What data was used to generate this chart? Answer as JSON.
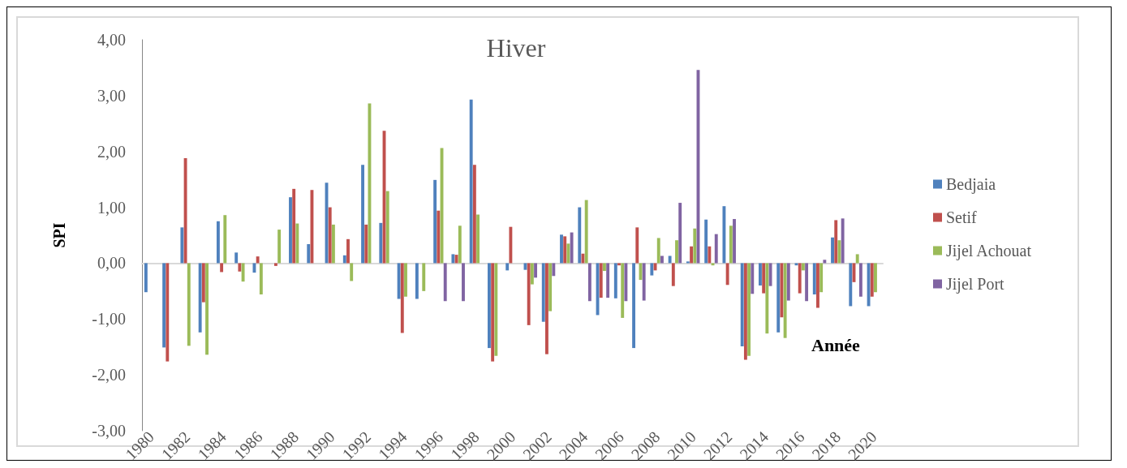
{
  "chart_data": {
    "type": "bar",
    "title": "Hiver",
    "xlabel": "Année",
    "ylabel": "SPI",
    "categories": [
      "1980",
      null,
      "1982",
      null,
      "1984",
      null,
      "1986",
      null,
      "1988",
      null,
      "1990",
      null,
      "1992",
      null,
      "1994",
      null,
      "1996",
      null,
      "1998",
      null,
      "2000",
      null,
      "2002",
      null,
      "2004",
      null,
      "2006",
      null,
      "2008",
      null,
      "2010",
      null,
      "2012",
      null,
      "2014",
      null,
      "2016",
      null,
      "2018",
      null,
      "2020"
    ],
    "series": [
      {
        "name": "Bedjaia",
        "color": "#4f81bd",
        "values": [
          -0.52,
          -1.51,
          0.64,
          -1.24,
          0.75,
          0.19,
          -0.17,
          null,
          1.18,
          0.34,
          1.44,
          0.14,
          1.76,
          0.72,
          -0.64,
          -0.64,
          1.49,
          0.16,
          2.93,
          -1.52,
          -0.13,
          -0.12,
          -1.05,
          0.51,
          1.0,
          -0.93,
          -0.63,
          -1.52,
          -0.22,
          0.13,
          0.03,
          0.78,
          1.02,
          -1.49,
          -0.4,
          -1.24,
          -0.04,
          -0.56,
          0.46,
          -0.77,
          -0.77
        ]
      },
      {
        "name": "Setif",
        "color": "#c0504d",
        "values": [
          null,
          -1.76,
          1.88,
          -0.7,
          -0.16,
          -0.15,
          0.12,
          -0.05,
          1.33,
          1.31,
          1.0,
          0.43,
          0.69,
          2.37,
          -1.25,
          null,
          0.94,
          0.15,
          1.76,
          -1.76,
          0.65,
          -1.11,
          -1.63,
          0.48,
          0.17,
          -0.62,
          -0.04,
          0.64,
          -0.13,
          -0.41,
          0.3,
          0.3,
          -0.39,
          -1.73,
          -0.54,
          -0.97,
          -0.54,
          -0.8,
          0.77,
          -0.34,
          -0.6
        ]
      },
      {
        "name": "Jijel Achouat",
        "color": "#9bbb59",
        "values": [
          null,
          null,
          -1.48,
          -1.64,
          0.86,
          -0.33,
          -0.56,
          0.6,
          0.71,
          null,
          0.69,
          -0.32,
          2.86,
          1.29,
          -0.6,
          -0.5,
          2.06,
          0.67,
          0.87,
          -1.66,
          null,
          -0.38,
          -0.86,
          0.35,
          1.13,
          -0.14,
          -0.98,
          -0.3,
          0.45,
          0.41,
          0.62,
          -0.04,
          0.67,
          -1.66,
          -1.26,
          -1.34,
          -0.13,
          -0.52,
          0.41,
          0.16,
          -0.52
        ]
      },
      {
        "name": "Jijel Port",
        "color": "#8064a2",
        "values": [
          null,
          null,
          null,
          null,
          null,
          null,
          null,
          null,
          null,
          null,
          null,
          null,
          null,
          null,
          null,
          null,
          -0.68,
          -0.68,
          null,
          null,
          null,
          -0.26,
          -0.23,
          0.55,
          -0.68,
          -0.62,
          -0.68,
          -0.67,
          0.13,
          1.08,
          3.46,
          0.52,
          0.79,
          -0.55,
          -0.41,
          -0.67,
          -0.68,
          0.06,
          0.8,
          -0.6,
          null
        ]
      }
    ],
    "ylim": [
      -3,
      4
    ],
    "yticks": [
      {
        "value": -3,
        "label": "-3,00"
      },
      {
        "value": -2,
        "label": "-2,00"
      },
      {
        "value": -1,
        "label": "-1,00"
      },
      {
        "value": 0,
        "label": "0,00"
      },
      {
        "value": 1,
        "label": "1,00"
      },
      {
        "value": 2,
        "label": "2,00"
      },
      {
        "value": 3,
        "label": "3,00"
      },
      {
        "value": 4,
        "label": "4,00"
      }
    ],
    "legend": "right"
  }
}
